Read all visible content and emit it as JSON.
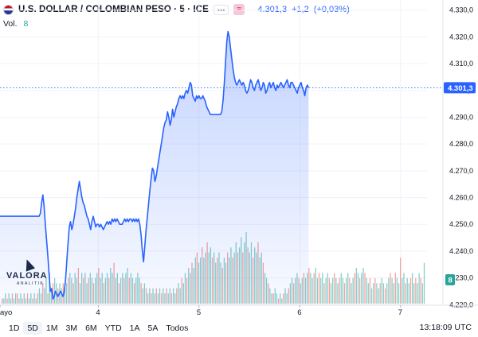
{
  "header": {
    "symbol_title": "U.S. DOLLAR / COLOMBIAN PESO · 5 · ICE",
    "more_label": "•••",
    "compare_label": "≈",
    "last_price": "4.301,3",
    "change": "+1,2",
    "change_pct": "(+0,03%)",
    "vol_label": "Vol.",
    "vol_value": "8"
  },
  "logo": {
    "text": "VALORA",
    "sub": "ANALITIK"
  },
  "timeframes": [
    {
      "label": "1D",
      "active": false
    },
    {
      "label": "5D",
      "active": true
    },
    {
      "label": "1M",
      "active": false
    },
    {
      "label": "3M",
      "active": false
    },
    {
      "label": "6M",
      "active": false
    },
    {
      "label": "YTD",
      "active": false
    },
    {
      "label": "1A",
      "active": false
    },
    {
      "label": "5A",
      "active": false
    },
    {
      "label": "Todos",
      "active": false
    }
  ],
  "clock": "13:18:09 UTC",
  "colors": {
    "line": "#2962ff",
    "volume_up": "#26a69a",
    "volume_down": "#ef5350",
    "price_label_bg": "#2962ff",
    "volume_label_bg": "#26a69a"
  },
  "chart_data": {
    "type": "area",
    "y_ticks": [
      "4.330,0",
      "4.320,0",
      "4.310,0",
      "4.300,0",
      "4.290,0",
      "4.280,0",
      "4.270,0",
      "4.260,0",
      "4.250,0",
      "4.240,0",
      "4.230,0",
      "4.220,0"
    ],
    "ylim": [
      4218,
      4332
    ],
    "x_ticks": [
      "ayo",
      "4",
      "5",
      "6",
      "7"
    ],
    "x_tick_positions": [
      0,
      78,
      158,
      238,
      318
    ],
    "xlim": [
      0,
      339
    ],
    "last_value_label": "4.301,3",
    "volume_value_label": "8",
    "series": [
      {
        "values": [
          4253,
          4253,
          4253,
          4253,
          4253,
          4253,
          4253,
          4253,
          4253,
          4253,
          4253,
          4253,
          4253,
          4253,
          4253,
          4253,
          4253,
          4253,
          4253,
          4253,
          4253,
          4253,
          4253,
          4253,
          4253,
          4253,
          4253,
          4253,
          4253,
          4253,
          4253,
          4253,
          4254,
          4258,
          4261,
          4257,
          4250,
          4244,
          4238,
          4231,
          4225,
          4226,
          4222,
          4223,
          4225,
          4224,
          4223,
          4224,
          4225,
          4224,
          4223,
          4225,
          4229,
          4236,
          4243,
          4249,
          4251,
          4248,
          4250,
          4253,
          4256,
          4260,
          4263,
          4266,
          4263,
          4260,
          4258,
          4257,
          4255,
          4253,
          4252,
          4250,
          4248,
          4251,
          4253,
          4251,
          4249,
          4250,
          4250,
          4249,
          4250,
          4249,
          4248,
          4249,
          4250,
          4251,
          4250,
          4251,
          4250,
          4252,
          4251,
          4252,
          4251,
          4252,
          4251,
          4250,
          4250,
          4250,
          4251,
          4252,
          4251,
          4252,
          4251,
          4252,
          4252,
          4251,
          4252,
          4251,
          4252,
          4251,
          4252,
          4250,
          4246,
          4240,
          4236,
          4242,
          4248,
          4253,
          4258,
          4263,
          4267,
          4271,
          4270,
          4266,
          4268,
          4271,
          4274,
          4277,
          4280,
          4283,
          4286,
          4288,
          4289,
          4292,
          4290,
          4287,
          4289,
          4293,
          4290,
          4292,
          4294,
          4295,
          4297,
          4298,
          4297,
          4298,
          4297,
          4299,
          4300,
          4299,
          4301,
          4303,
          4302,
          4298,
          4297,
          4296,
          4298,
          4297,
          4298,
          4297,
          4297,
          4298,
          4297,
          4296,
          4294,
          4293,
          4292,
          4291,
          4291,
          4291,
          4291,
          4291,
          4291,
          4291,
          4291,
          4291,
          4292,
          4296,
          4302,
          4310,
          4318,
          4322,
          4320,
          4316,
          4312,
          4308,
          4305,
          4303,
          4302,
          4303,
          4304,
          4303,
          4302,
          4303,
          4302,
          4300,
          4299,
          4300,
          4302,
          4304,
          4303,
          4301,
          4300,
          4302,
          4303,
          4304,
          4302,
          4300,
          4301,
          4303,
          4302,
          4299,
          4300,
          4302,
          4303,
          4301,
          4302,
          4303,
          4301,
          4300,
          4302,
          4301,
          4302,
          4303,
          4302,
          4301,
          4302,
          4303,
          4304,
          4302,
          4301,
          4303,
          4303,
          4302,
          4301,
          4300,
          4299,
          4301,
          4302,
          4303,
          4301,
          4300,
          4298,
          4301,
          4302,
          4301
        ]
      }
    ],
    "volume": [
      [
        1,
        0
      ],
      [
        1,
        1
      ],
      [
        2,
        1
      ],
      [
        1,
        0
      ],
      [
        2,
        1
      ],
      [
        1,
        1
      ],
      [
        2,
        0
      ],
      [
        1,
        1
      ],
      [
        2,
        1
      ],
      [
        2,
        0
      ],
      [
        1,
        1
      ],
      [
        2,
        1
      ],
      [
        1,
        0
      ],
      [
        2,
        1
      ],
      [
        1,
        1
      ],
      [
        2,
        0
      ],
      [
        1,
        1
      ],
      [
        2,
        1
      ],
      [
        1,
        0
      ],
      [
        2,
        1
      ],
      [
        1,
        1
      ],
      [
        2,
        0
      ],
      [
        3,
        1
      ],
      [
        2,
        1
      ],
      [
        4,
        0
      ],
      [
        3,
        1
      ],
      [
        5,
        1
      ],
      [
        2,
        0
      ],
      [
        6,
        1
      ],
      [
        3,
        1
      ],
      [
        4,
        0
      ],
      [
        5,
        1
      ],
      [
        4,
        1
      ],
      [
        3,
        0
      ],
      [
        4,
        1
      ],
      [
        3,
        1
      ],
      [
        4,
        0
      ],
      [
        3,
        1
      ],
      [
        4,
        1
      ],
      [
        5,
        0
      ],
      [
        6,
        1
      ],
      [
        5,
        1
      ],
      [
        4,
        0
      ],
      [
        6,
        1
      ],
      [
        5,
        1
      ],
      [
        7,
        0
      ],
      [
        4,
        1
      ],
      [
        6,
        1
      ],
      [
        5,
        0
      ],
      [
        6,
        1
      ],
      [
        4,
        1
      ],
      [
        5,
        0
      ],
      [
        6,
        1
      ],
      [
        5,
        1
      ],
      [
        4,
        0
      ],
      [
        5,
        1
      ],
      [
        6,
        1
      ],
      [
        7,
        0
      ],
      [
        5,
        1
      ],
      [
        6,
        1
      ],
      [
        4,
        0
      ],
      [
        5,
        1
      ],
      [
        6,
        1
      ],
      [
        5,
        0
      ],
      [
        7,
        1
      ],
      [
        6,
        1
      ],
      [
        8,
        0
      ],
      [
        5,
        1
      ],
      [
        6,
        1
      ],
      [
        4,
        0
      ],
      [
        5,
        1
      ],
      [
        6,
        1
      ],
      [
        5,
        0
      ],
      [
        6,
        1
      ],
      [
        7,
        1
      ],
      [
        5,
        0
      ],
      [
        6,
        1
      ],
      [
        5,
        1
      ],
      [
        4,
        0
      ],
      [
        5,
        1
      ],
      [
        6,
        1
      ],
      [
        5,
        1
      ],
      [
        4,
        0
      ],
      [
        3,
        1
      ],
      [
        4,
        1
      ],
      [
        3,
        0
      ],
      [
        2,
        1
      ],
      [
        3,
        1
      ],
      [
        2,
        0
      ],
      [
        3,
        1
      ],
      [
        2,
        1
      ],
      [
        3,
        0
      ],
      [
        2,
        1
      ],
      [
        3,
        1
      ],
      [
        2,
        0
      ],
      [
        3,
        1
      ],
      [
        2,
        1
      ],
      [
        3,
        0
      ],
      [
        2,
        1
      ],
      [
        3,
        1
      ],
      [
        2,
        0
      ],
      [
        3,
        1
      ],
      [
        2,
        1
      ],
      [
        3,
        0
      ],
      [
        4,
        1
      ],
      [
        3,
        1
      ],
      [
        5,
        0
      ],
      [
        4,
        1
      ],
      [
        6,
        1
      ],
      [
        5,
        0
      ],
      [
        7,
        1
      ],
      [
        6,
        1
      ],
      [
        8,
        0
      ],
      [
        7,
        1
      ],
      [
        9,
        1
      ],
      [
        10,
        0
      ],
      [
        8,
        1
      ],
      [
        9,
        1
      ],
      [
        11,
        0
      ],
      [
        9,
        1
      ],
      [
        10,
        1
      ],
      [
        12,
        0
      ],
      [
        10,
        1
      ],
      [
        11,
        1
      ],
      [
        9,
        0
      ],
      [
        10,
        1
      ],
      [
        8,
        1
      ],
      [
        9,
        0
      ],
      [
        10,
        1
      ],
      [
        8,
        1
      ],
      [
        7,
        0
      ],
      [
        9,
        1
      ],
      [
        8,
        1
      ],
      [
        10,
        0
      ],
      [
        9,
        1
      ],
      [
        11,
        1
      ],
      [
        9,
        0
      ],
      [
        10,
        1
      ],
      [
        12,
        1
      ],
      [
        10,
        0
      ],
      [
        11,
        1
      ],
      [
        13,
        1
      ],
      [
        10,
        0
      ],
      [
        12,
        1
      ],
      [
        14,
        1
      ],
      [
        11,
        0
      ],
      [
        10,
        1
      ],
      [
        12,
        1
      ],
      [
        9,
        0
      ],
      [
        11,
        1
      ],
      [
        10,
        1
      ],
      [
        12,
        0
      ],
      [
        9,
        1
      ],
      [
        10,
        1
      ],
      [
        8,
        0
      ],
      [
        6,
        1
      ],
      [
        5,
        1
      ],
      [
        4,
        0
      ],
      [
        3,
        1
      ],
      [
        2,
        1
      ],
      [
        2,
        0
      ],
      [
        3,
        1
      ],
      [
        2,
        1
      ],
      [
        1,
        0
      ],
      [
        2,
        1
      ],
      [
        1,
        1
      ],
      [
        2,
        0
      ],
      [
        3,
        1
      ],
      [
        2,
        1
      ],
      [
        3,
        0
      ],
      [
        4,
        1
      ],
      [
        5,
        1
      ],
      [
        4,
        0
      ],
      [
        5,
        1
      ],
      [
        6,
        1
      ],
      [
        5,
        0
      ],
      [
        4,
        1
      ],
      [
        5,
        1
      ],
      [
        6,
        0
      ],
      [
        5,
        1
      ],
      [
        6,
        1
      ],
      [
        7,
        0
      ],
      [
        6,
        1
      ],
      [
        5,
        1
      ],
      [
        6,
        0
      ],
      [
        7,
        1
      ],
      [
        5,
        1
      ],
      [
        6,
        0
      ],
      [
        5,
        1
      ],
      [
        6,
        1
      ],
      [
        4,
        0
      ],
      [
        5,
        1
      ],
      [
        6,
        1
      ],
      [
        5,
        0
      ],
      [
        4,
        1
      ],
      [
        5,
        1
      ],
      [
        6,
        0
      ],
      [
        5,
        1
      ],
      [
        4,
        1
      ],
      [
        5,
        0
      ],
      [
        6,
        1
      ],
      [
        5,
        1
      ],
      [
        4,
        0
      ],
      [
        5,
        1
      ],
      [
        6,
        1
      ],
      [
        5,
        0
      ],
      [
        4,
        1
      ],
      [
        5,
        1
      ],
      [
        6,
        0
      ],
      [
        7,
        1
      ],
      [
        6,
        1
      ],
      [
        5,
        0
      ],
      [
        6,
        1
      ],
      [
        7,
        1
      ],
      [
        6,
        0
      ],
      [
        5,
        1
      ],
      [
        4,
        1
      ],
      [
        5,
        0
      ],
      [
        3,
        1
      ],
      [
        4,
        1
      ],
      [
        5,
        0
      ],
      [
        4,
        1
      ],
      [
        3,
        1
      ],
      [
        4,
        0
      ],
      [
        5,
        1
      ],
      [
        4,
        1
      ],
      [
        3,
        0
      ],
      [
        4,
        1
      ],
      [
        5,
        1
      ],
      [
        6,
        0
      ],
      [
        5,
        1
      ],
      [
        4,
        1
      ],
      [
        6,
        0
      ],
      [
        5,
        1
      ],
      [
        4,
        1
      ],
      [
        9,
        0
      ],
      [
        5,
        1
      ],
      [
        6,
        1
      ],
      [
        4,
        0
      ],
      [
        5,
        1
      ],
      [
        4,
        1
      ],
      [
        5,
        0
      ],
      [
        6,
        1
      ],
      [
        4,
        1
      ],
      [
        5,
        0
      ],
      [
        4,
        1
      ],
      [
        6,
        1
      ],
      [
        5,
        0
      ],
      [
        4,
        1
      ],
      [
        8,
        1
      ]
    ]
  }
}
